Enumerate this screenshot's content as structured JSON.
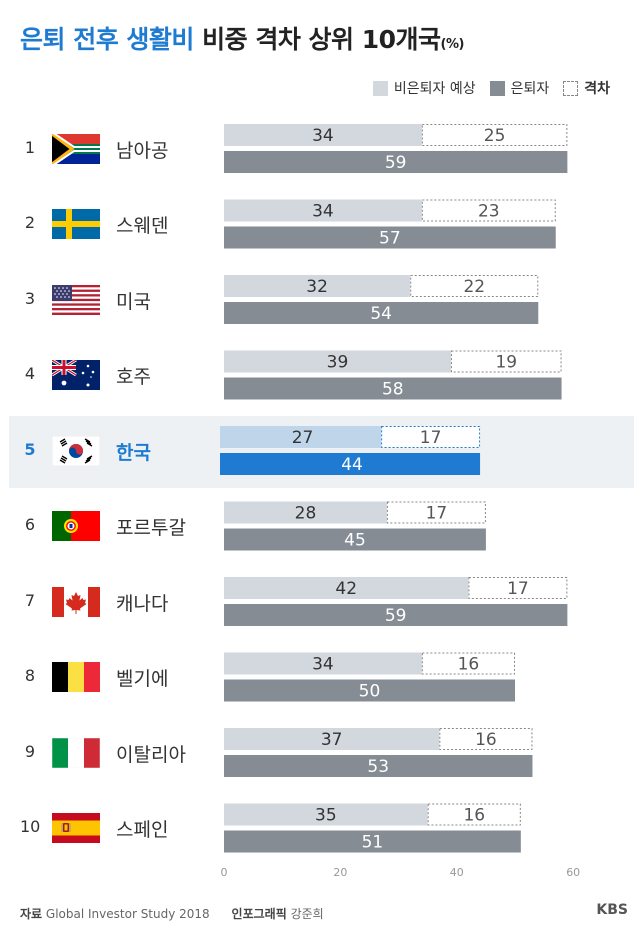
{
  "title": {
    "highlight": "은퇴 전후 생활비",
    "rest": "비중 격차 상위 10개국",
    "unit": "(%)"
  },
  "legend": [
    {
      "key": "pre",
      "label": "비은퇴자 예상"
    },
    {
      "key": "post",
      "label": "은퇴자"
    },
    {
      "key": "gap",
      "label": "격차"
    }
  ],
  "colors": {
    "pre": "#d3d8de",
    "post": "#858c94",
    "pre_highlight": "#bfd6ea",
    "post_highlight": "#1f7bd1",
    "accent": "#1f7bd1"
  },
  "countries": [
    {
      "rank": "1",
      "name": "남아공",
      "flag": "south-africa-flag-icon"
    },
    {
      "rank": "2",
      "name": "스웨덴",
      "flag": "sweden-flag-icon"
    },
    {
      "rank": "3",
      "name": "미국",
      "flag": "usa-flag-icon"
    },
    {
      "rank": "4",
      "name": "호주",
      "flag": "australia-flag-icon"
    },
    {
      "rank": "5",
      "name": "한국",
      "flag": "korea-flag-icon",
      "highlight": true
    },
    {
      "rank": "6",
      "name": "포르투갈",
      "flag": "portugal-flag-icon"
    },
    {
      "rank": "7",
      "name": "캐나다",
      "flag": "canada-flag-icon"
    },
    {
      "rank": "8",
      "name": "벨기에",
      "flag": "belgium-flag-icon"
    },
    {
      "rank": "9",
      "name": "이탈리아",
      "flag": "italy-flag-icon"
    },
    {
      "rank": "10",
      "name": "스페인",
      "flag": "spain-flag-icon"
    }
  ],
  "chart_data": {
    "type": "bar",
    "orientation": "horizontal",
    "categories": [
      "남아공",
      "스웨덴",
      "미국",
      "호주",
      "한국",
      "포르투갈",
      "캐나다",
      "벨기에",
      "이탈리아",
      "스페인"
    ],
    "series": [
      {
        "name": "비은퇴자 예상",
        "values": [
          34,
          34,
          32,
          39,
          27,
          28,
          42,
          34,
          37,
          35
        ]
      },
      {
        "name": "은퇴자",
        "values": [
          59,
          57,
          54,
          58,
          44,
          45,
          59,
          50,
          53,
          51
        ]
      },
      {
        "name": "격차",
        "values": [
          25,
          23,
          22,
          19,
          17,
          17,
          17,
          16,
          16,
          16
        ]
      }
    ],
    "xlim": [
      0,
      60
    ],
    "xticks": [
      0,
      20,
      40,
      60
    ],
    "grid": false,
    "legend_position": "top-right"
  },
  "footer": {
    "source_label": "자료",
    "source_text": "Global Investor Study 2018",
    "credit_label": "인포그래픽",
    "credit_name": "강준희",
    "logo": "KBS"
  }
}
